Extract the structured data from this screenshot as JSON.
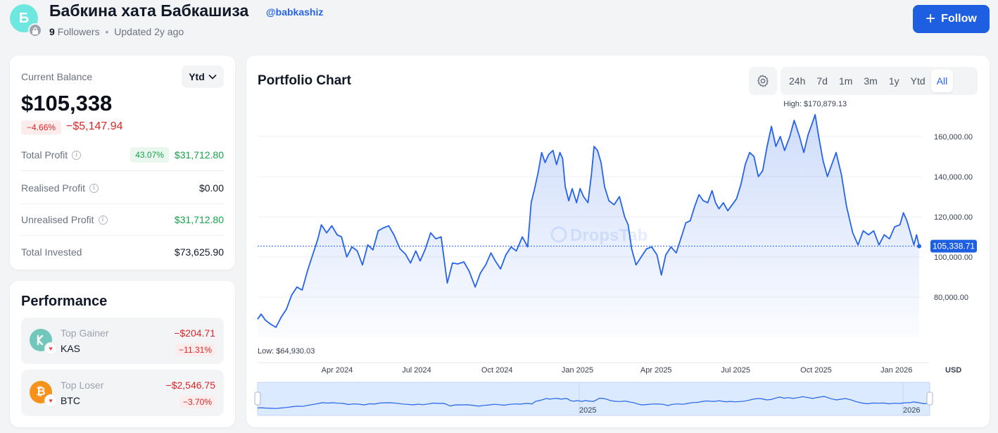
{
  "profile": {
    "avatar_letter": "Б",
    "name": "Бабкина хата Бабкашиза",
    "handle": "@babkashiz",
    "followers_count": "9",
    "followers_label": "Followers",
    "separator": "•",
    "updated": "Updated 2y ago",
    "follow_label": "Follow"
  },
  "balance": {
    "label": "Current Balance",
    "period": "Ytd",
    "value": "$105,338",
    "change_pct": "−4.66%",
    "change_abs": "−$5,147.94",
    "rows": [
      {
        "label": "Total Profit",
        "pct": "43.07%",
        "value": "$31,712.80"
      },
      {
        "label": "Realised Profit",
        "value": "$0.00"
      },
      {
        "label": "Unrealised Profit",
        "value": "$31,712.80"
      },
      {
        "label": "Total Invested",
        "value": "$73,625.90"
      }
    ]
  },
  "performance": {
    "title": "Performance",
    "gainer": {
      "label": "Top Gainer",
      "symbol": "KAS",
      "value": "−$204.71",
      "pct": "−11.31%"
    },
    "loser": {
      "label": "Top Loser",
      "symbol": "BTC",
      "value": "−$2,546.75",
      "pct": "−3.70%"
    }
  },
  "chart": {
    "title": "Portfolio Chart",
    "ranges": [
      "24h",
      "7d",
      "1m",
      "3m",
      "1y",
      "Ytd",
      "All"
    ],
    "active_range": "All",
    "watermark": "DropsTab",
    "currency": "USD",
    "high_label": "High: $170,879.13",
    "low_label": "Low: $64,930.03",
    "current_label": "105,338.71",
    "navigator_labels": [
      "2025",
      "2026"
    ],
    "accent_color": "#2563eb"
  },
  "chart_data": {
    "type": "area",
    "title": "Portfolio Chart",
    "xlabel": "",
    "ylabel": "USD",
    "ylim": [
      60000,
      175000
    ],
    "y_ticks": [
      80000,
      100000,
      120000,
      140000,
      160000
    ],
    "y_tick_labels": [
      "80,000.00",
      "100,000.00",
      "120,000.00",
      "140,000.00",
      "160,000.00"
    ],
    "x_tick_labels": [
      "Apr 2024",
      "Jul 2024",
      "Oct 2024",
      "Jan 2025",
      "Apr 2025",
      "Jul 2025",
      "Oct 2025",
      "Jan 2026"
    ],
    "x_ticks": [
      "2024-04-01",
      "2024-07-01",
      "2024-10-01",
      "2025-01-01",
      "2025-04-01",
      "2025-07-01",
      "2025-10-01",
      "2026-01-01"
    ],
    "high": 170879.13,
    "low": 64930.03,
    "current": 105338.71,
    "series": [
      {
        "values": [
          [
            "2024-01-01",
            69000
          ],
          [
            "2024-01-05",
            71500
          ],
          [
            "2024-01-10",
            68500
          ],
          [
            "2024-01-16",
            66500
          ],
          [
            "2024-01-22",
            64930
          ],
          [
            "2024-01-28",
            70000
          ],
          [
            "2024-02-03",
            74000
          ],
          [
            "2024-02-09",
            81000
          ],
          [
            "2024-02-15",
            85000
          ],
          [
            "2024-02-21",
            83500
          ],
          [
            "2024-02-27",
            93000
          ],
          [
            "2024-03-04",
            101000
          ],
          [
            "2024-03-10",
            109000
          ],
          [
            "2024-03-14",
            116000
          ],
          [
            "2024-03-20",
            112000
          ],
          [
            "2024-03-26",
            115500
          ],
          [
            "2024-04-01",
            111000
          ],
          [
            "2024-04-06",
            110000
          ],
          [
            "2024-04-12",
            100000
          ],
          [
            "2024-04-18",
            105000
          ],
          [
            "2024-04-24",
            103000
          ],
          [
            "2024-04-30",
            96000
          ],
          [
            "2024-05-06",
            106000
          ],
          [
            "2024-05-12",
            103500
          ],
          [
            "2024-05-18",
            113000
          ],
          [
            "2024-05-24",
            114500
          ],
          [
            "2024-05-30",
            115500
          ],
          [
            "2024-06-05",
            111000
          ],
          [
            "2024-06-12",
            104000
          ],
          [
            "2024-06-18",
            101500
          ],
          [
            "2024-06-24",
            97000
          ],
          [
            "2024-06-30",
            103000
          ],
          [
            "2024-07-05",
            98000
          ],
          [
            "2024-07-11",
            104000
          ],
          [
            "2024-07-17",
            112000
          ],
          [
            "2024-07-23",
            109000
          ],
          [
            "2024-07-29",
            110000
          ],
          [
            "2024-08-05",
            87000
          ],
          [
            "2024-08-11",
            97000
          ],
          [
            "2024-08-17",
            96500
          ],
          [
            "2024-08-24",
            97500
          ],
          [
            "2024-08-30",
            93000
          ],
          [
            "2024-09-06",
            85000
          ],
          [
            "2024-09-12",
            92000
          ],
          [
            "2024-09-18",
            96000
          ],
          [
            "2024-09-24",
            102000
          ],
          [
            "2024-09-29",
            98000
          ],
          [
            "2024-10-05",
            94000
          ],
          [
            "2024-10-11",
            101000
          ],
          [
            "2024-10-17",
            105000
          ],
          [
            "2024-10-23",
            103000
          ],
          [
            "2024-10-30",
            110000
          ],
          [
            "2024-11-05",
            105000
          ],
          [
            "2024-11-09",
            127000
          ],
          [
            "2024-11-13",
            134000
          ],
          [
            "2024-11-17",
            142000
          ],
          [
            "2024-11-21",
            152000
          ],
          [
            "2024-11-25",
            147000
          ],
          [
            "2024-11-29",
            151000
          ],
          [
            "2024-12-04",
            153000
          ],
          [
            "2024-12-08",
            146000
          ],
          [
            "2024-12-12",
            152000
          ],
          [
            "2024-12-15",
            149000
          ],
          [
            "2024-12-18",
            135000
          ],
          [
            "2024-12-22",
            128000
          ],
          [
            "2024-12-26",
            134000
          ],
          [
            "2024-12-31",
            127000
          ],
          [
            "2025-01-04",
            134000
          ],
          [
            "2025-01-08",
            130000
          ],
          [
            "2025-01-13",
            127000
          ],
          [
            "2025-01-17",
            141000
          ],
          [
            "2025-01-20",
            155000
          ],
          [
            "2025-01-24",
            153000
          ],
          [
            "2025-01-28",
            147000
          ],
          [
            "2025-02-01",
            135000
          ],
          [
            "2025-02-06",
            128000
          ],
          [
            "2025-02-12",
            126000
          ],
          [
            "2025-02-18",
            130000
          ],
          [
            "2025-02-24",
            120000
          ],
          [
            "2025-02-28",
            116000
          ],
          [
            "2025-03-04",
            104000
          ],
          [
            "2025-03-09",
            96000
          ],
          [
            "2025-03-15",
            100000
          ],
          [
            "2025-03-21",
            104000
          ],
          [
            "2025-03-27",
            105000
          ],
          [
            "2025-04-02",
            101000
          ],
          [
            "2025-04-07",
            91000
          ],
          [
            "2025-04-12",
            101000
          ],
          [
            "2025-04-18",
            105000
          ],
          [
            "2025-04-24",
            102000
          ],
          [
            "2025-04-30",
            110000
          ],
          [
            "2025-05-05",
            117000
          ],
          [
            "2025-05-10",
            118000
          ],
          [
            "2025-05-15",
            125000
          ],
          [
            "2025-05-20",
            131000
          ],
          [
            "2025-05-25",
            128000
          ],
          [
            "2025-05-30",
            127000
          ],
          [
            "2025-06-04",
            133000
          ],
          [
            "2025-06-08",
            127000
          ],
          [
            "2025-06-12",
            124000
          ],
          [
            "2025-06-17",
            127000
          ],
          [
            "2025-06-22",
            123000
          ],
          [
            "2025-06-27",
            126000
          ],
          [
            "2025-07-02",
            129000
          ],
          [
            "2025-07-07",
            136000
          ],
          [
            "2025-07-12",
            146000
          ],
          [
            "2025-07-17",
            152000
          ],
          [
            "2025-07-22",
            150000
          ],
          [
            "2025-07-27",
            140000
          ],
          [
            "2025-08-01",
            143000
          ],
          [
            "2025-08-06",
            155000
          ],
          [
            "2025-08-11",
            165000
          ],
          [
            "2025-08-16",
            155000
          ],
          [
            "2025-08-21",
            160000
          ],
          [
            "2025-08-26",
            153000
          ],
          [
            "2025-09-01",
            160000
          ],
          [
            "2025-09-06",
            168000
          ],
          [
            "2025-09-12",
            160000
          ],
          [
            "2025-09-17",
            152000
          ],
          [
            "2025-09-22",
            161000
          ],
          [
            "2025-09-27",
            167000
          ],
          [
            "2025-09-30",
            170879
          ],
          [
            "2025-10-04",
            160000
          ],
          [
            "2025-10-09",
            148000
          ],
          [
            "2025-10-14",
            140000
          ],
          [
            "2025-10-19",
            146000
          ],
          [
            "2025-10-24",
            152000
          ],
          [
            "2025-10-30",
            141000
          ],
          [
            "2025-11-05",
            125000
          ],
          [
            "2025-11-12",
            112000
          ],
          [
            "2025-11-18",
            106000
          ],
          [
            "2025-11-24",
            113000
          ],
          [
            "2025-11-30",
            111000
          ],
          [
            "2025-12-06",
            113000
          ],
          [
            "2025-12-12",
            106000
          ],
          [
            "2025-12-18",
            111000
          ],
          [
            "2025-12-24",
            109000
          ],
          [
            "2025-12-30",
            115000
          ],
          [
            "2026-01-05",
            116000
          ],
          [
            "2026-01-09",
            122000
          ],
          [
            "2026-01-13",
            118000
          ],
          [
            "2026-01-17",
            112000
          ],
          [
            "2026-01-21",
            106000
          ],
          [
            "2026-01-24",
            111000
          ],
          [
            "2026-01-27",
            105338.71
          ]
        ]
      }
    ]
  }
}
